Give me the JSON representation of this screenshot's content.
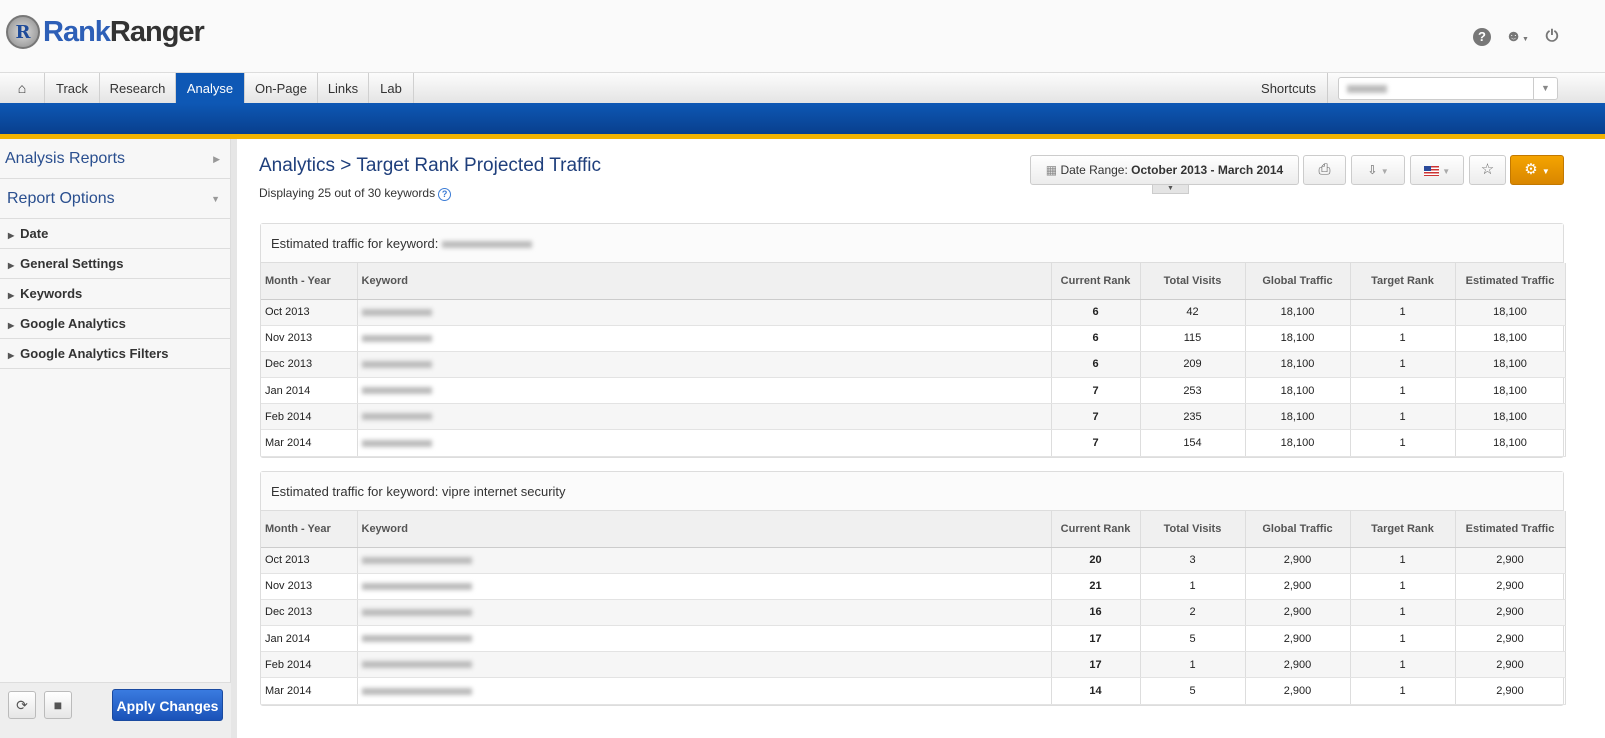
{
  "brand": {
    "part1": "Rank",
    "part2": "Ranger"
  },
  "nav": {
    "tabs": [
      "Track",
      "Research",
      "Analyse",
      "On-Page",
      "Links",
      "Lab"
    ],
    "active": "Analyse",
    "shortcuts": "Shortcuts"
  },
  "sidebar": {
    "analysis_reports": "Analysis Reports",
    "report_options": "Report Options",
    "items": [
      "Date",
      "General Settings",
      "Keywords",
      "Google Analytics",
      "Google Analytics Filters"
    ],
    "apply": "Apply Changes"
  },
  "page": {
    "title": "Analytics > Target Rank Projected Traffic",
    "subtitle": "Displaying 25 out of 30 keywords",
    "date_label": "Date Range: ",
    "date_value": "October 2013 - March 2014"
  },
  "columns": [
    "Month - Year",
    "Keyword",
    "Current Rank",
    "Total Visits",
    "Global Traffic",
    "Target Rank",
    "Estimated Traffic"
  ],
  "tables": [
    {
      "title": "Estimated traffic for keyword: ",
      "rows": [
        [
          "Oct 2013",
          "6",
          "42",
          "18,100",
          "1",
          "18,100"
        ],
        [
          "Nov 2013",
          "6",
          "115",
          "18,100",
          "1",
          "18,100"
        ],
        [
          "Dec 2013",
          "6",
          "209",
          "18,100",
          "1",
          "18,100"
        ],
        [
          "Jan 2014",
          "7",
          "253",
          "18,100",
          "1",
          "18,100"
        ],
        [
          "Feb 2014",
          "7",
          "235",
          "18,100",
          "1",
          "18,100"
        ],
        [
          "Mar 2014",
          "7",
          "154",
          "18,100",
          "1",
          "18,100"
        ]
      ]
    },
    {
      "title": "Estimated traffic for keyword: vipre internet security",
      "rows": [
        [
          "Oct 2013",
          "20",
          "3",
          "2,900",
          "1",
          "2,900"
        ],
        [
          "Nov 2013",
          "21",
          "1",
          "2,900",
          "1",
          "2,900"
        ],
        [
          "Dec 2013",
          "16",
          "2",
          "2,900",
          "1",
          "2,900"
        ],
        [
          "Jan 2014",
          "17",
          "5",
          "2,900",
          "1",
          "2,900"
        ],
        [
          "Feb 2014",
          "17",
          "1",
          "2,900",
          "1",
          "2,900"
        ],
        [
          "Mar 2014",
          "14",
          "5",
          "2,900",
          "1",
          "2,900"
        ]
      ]
    }
  ],
  "colors": {
    "brand_blue": "#0e58b5",
    "gold": "#f2b300",
    "settings_orange": "#e89500"
  }
}
